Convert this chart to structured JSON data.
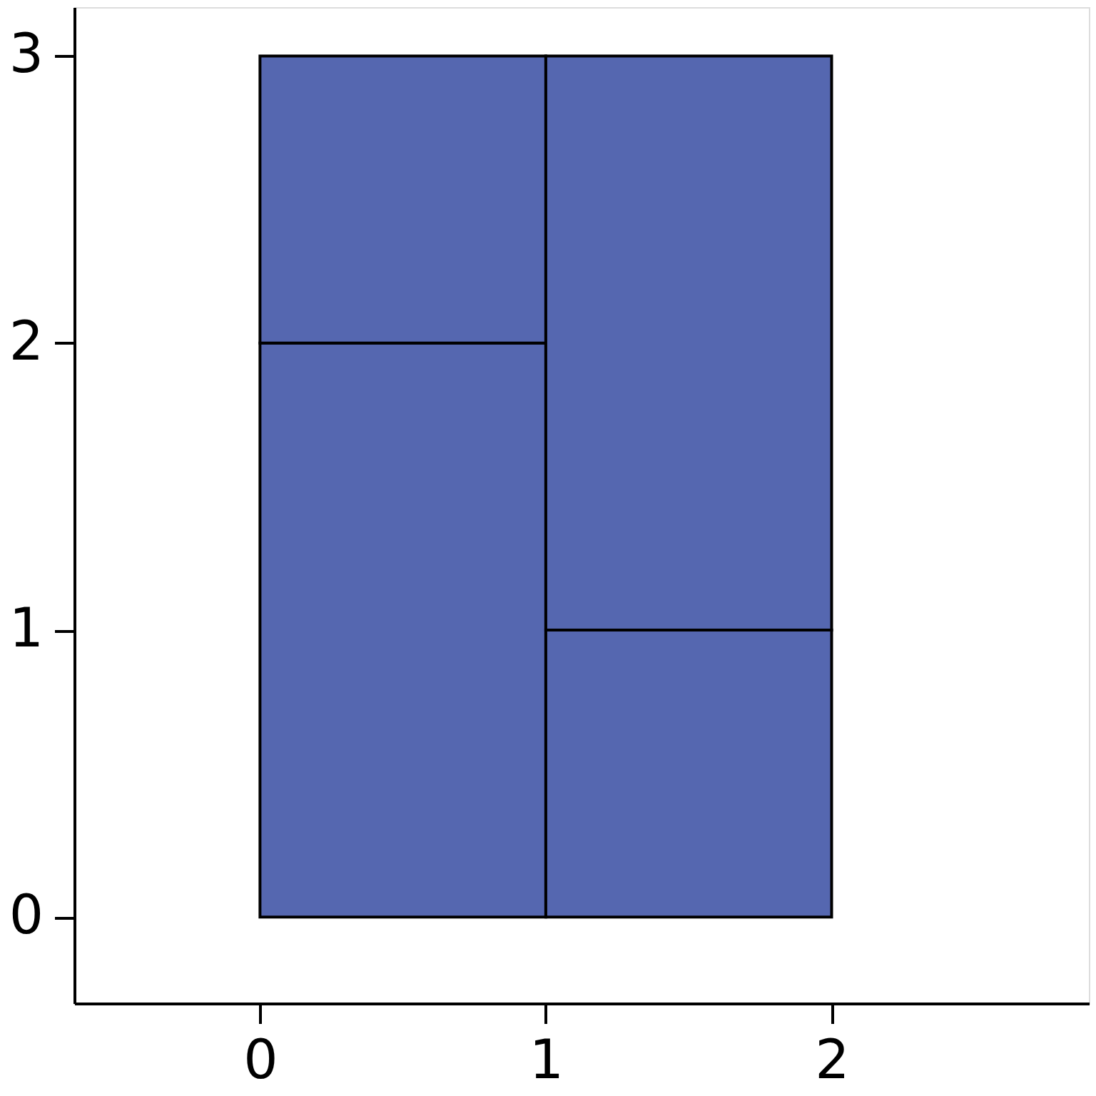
{
  "chart_data": {
    "type": "bar",
    "stacked": true,
    "x": [
      0.5,
      1.5
    ],
    "series": [
      {
        "color": "#5567b0",
        "values": [
          2,
          1
        ]
      },
      {
        "color": "#5567b0",
        "values": [
          1,
          2
        ]
      }
    ],
    "xlim": [
      -0.65,
      2.9
    ],
    "xticks": [
      0,
      1,
      2
    ],
    "ylim": [
      -0.3,
      3.17
    ],
    "yticks": [
      0,
      1,
      2,
      3
    ],
    "grid": false
  }
}
